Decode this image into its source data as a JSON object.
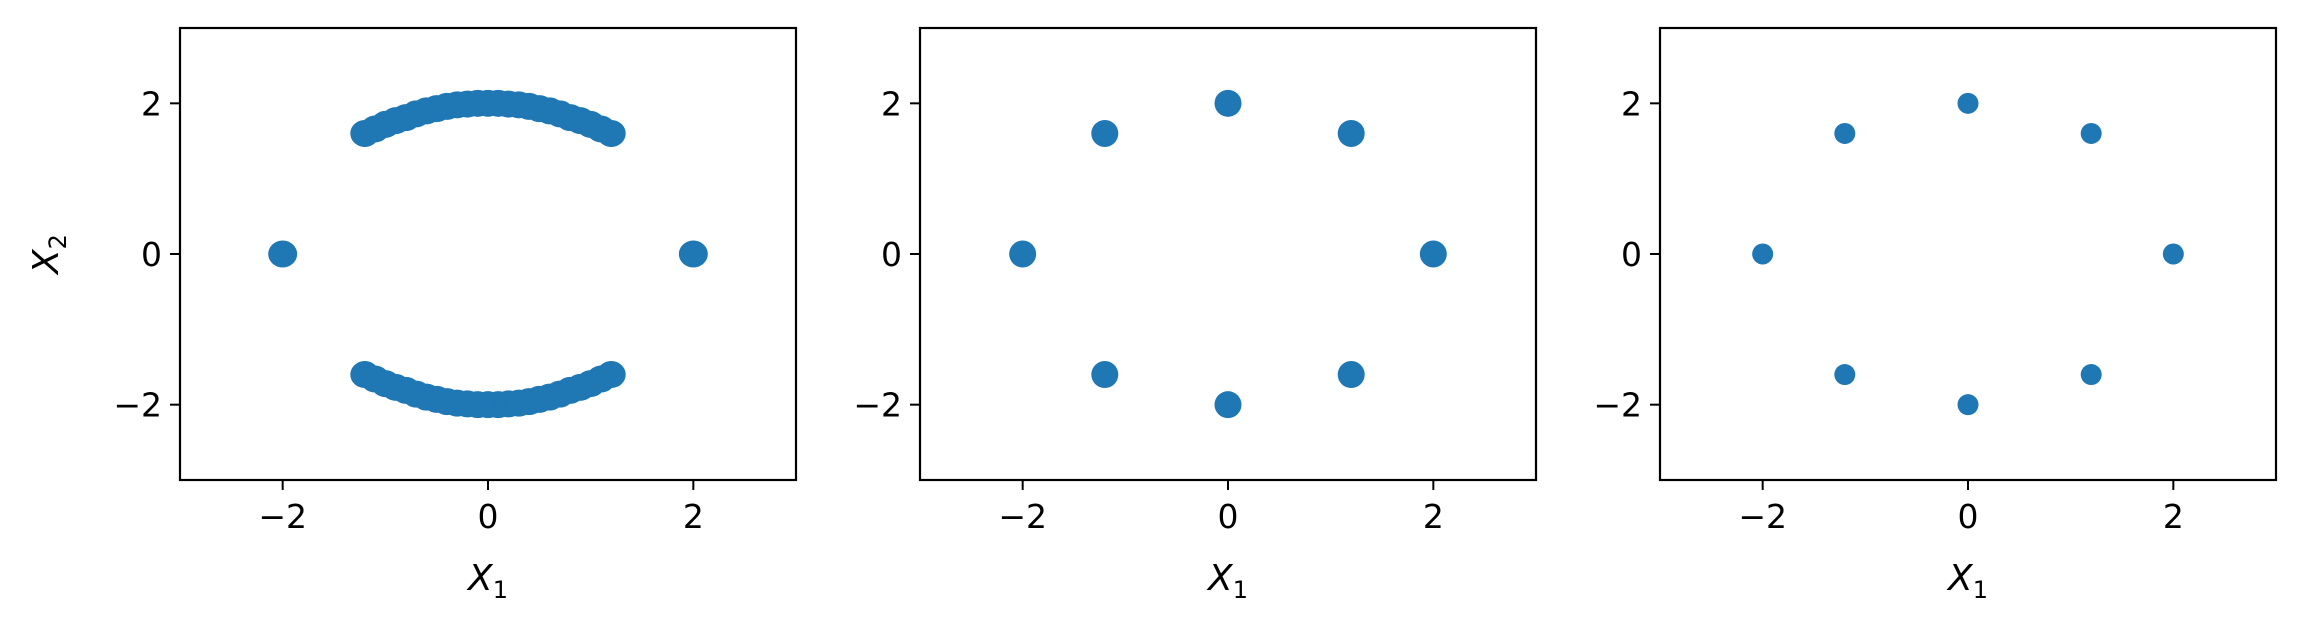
{
  "chart_data": [
    {
      "type": "scatter",
      "xlabel": "X",
      "xlabel_sub": "1",
      "ylabel": "X",
      "ylabel_sub": "2",
      "xlim": [
        -3,
        3
      ],
      "ylim": [
        -3,
        3
      ],
      "xticks": [
        -2,
        0,
        2
      ],
      "yticks": [
        -2,
        0,
        2
      ],
      "xtick_labels": [
        "−2",
        "0",
        "2"
      ],
      "ytick_labels": [
        "−2",
        "0",
        "2"
      ],
      "grid": false,
      "marker_color": "#1f77b4",
      "marker": "circle-large",
      "series": [
        {
          "x": [
            -2.0,
            2.0,
            -1.2,
            -1.1,
            -1.0,
            -0.9,
            -0.8,
            -0.7,
            -0.6,
            -0.5,
            -0.4,
            -0.3,
            -0.2,
            -0.1,
            0.0,
            0.1,
            0.2,
            0.3,
            0.4,
            0.5,
            0.6,
            0.7,
            0.8,
            0.9,
            1.0,
            1.1,
            1.2,
            -1.2,
            -1.1,
            -1.0,
            -0.9,
            -0.8,
            -0.7,
            -0.6,
            -0.5,
            -0.4,
            -0.3,
            -0.2,
            -0.1,
            0.0,
            0.1,
            0.2,
            0.3,
            0.4,
            0.5,
            0.6,
            0.7,
            0.8,
            0.9,
            1.0,
            1.1,
            1.2
          ],
          "y": [
            0.0,
            0.0,
            1.6,
            1.66,
            1.72,
            1.77,
            1.81,
            1.86,
            1.9,
            1.93,
            1.96,
            1.98,
            1.99,
            2.0,
            2.0,
            2.0,
            1.99,
            1.98,
            1.96,
            1.93,
            1.9,
            1.86,
            1.81,
            1.77,
            1.72,
            1.66,
            1.6,
            -1.6,
            -1.66,
            -1.72,
            -1.77,
            -1.81,
            -1.86,
            -1.9,
            -1.93,
            -1.96,
            -1.98,
            -1.99,
            -2.0,
            -2.0,
            -2.0,
            -1.99,
            -1.98,
            -1.96,
            -1.93,
            -1.9,
            -1.86,
            -1.81,
            -1.77,
            -1.72,
            -1.66,
            -1.6
          ]
        }
      ]
    },
    {
      "type": "scatter",
      "xlabel": "X",
      "xlabel_sub": "1",
      "ylabel": "",
      "ylabel_sub": "",
      "xlim": [
        -3,
        3
      ],
      "ylim": [
        -3,
        3
      ],
      "xticks": [
        -2,
        0,
        2
      ],
      "yticks": [
        -2,
        0,
        2
      ],
      "xtick_labels": [
        "−2",
        "0",
        "2"
      ],
      "ytick_labels": [
        "−2",
        "0",
        "2"
      ],
      "grid": false,
      "marker_color": "#1f77b4",
      "marker": "circle-medium",
      "series": [
        {
          "x": [
            -2.0,
            -1.2,
            0.0,
            1.2,
            2.0,
            1.2,
            0.0,
            -1.2
          ],
          "y": [
            0.0,
            1.6,
            2.0,
            1.6,
            0.0,
            -1.6,
            -2.0,
            -1.6
          ]
        }
      ]
    },
    {
      "type": "scatter",
      "xlabel": "X",
      "xlabel_sub": "1",
      "ylabel": "",
      "ylabel_sub": "",
      "xlim": [
        -3,
        3
      ],
      "ylim": [
        -3,
        3
      ],
      "xticks": [
        -2,
        0,
        2
      ],
      "yticks": [
        -2,
        0,
        2
      ],
      "xtick_labels": [
        "−2",
        "0",
        "2"
      ],
      "ytick_labels": [
        "−2",
        "0",
        "2"
      ],
      "grid": false,
      "marker_color": "#1f77b4",
      "marker": "circle-small",
      "series": [
        {
          "x": [
            -2.0,
            -1.2,
            0.0,
            1.2,
            2.0,
            1.2,
            0.0,
            -1.2
          ],
          "y": [
            0.0,
            1.6,
            2.0,
            1.6,
            0.0,
            -1.6,
            -2.0,
            -1.6
          ]
        }
      ]
    }
  ]
}
